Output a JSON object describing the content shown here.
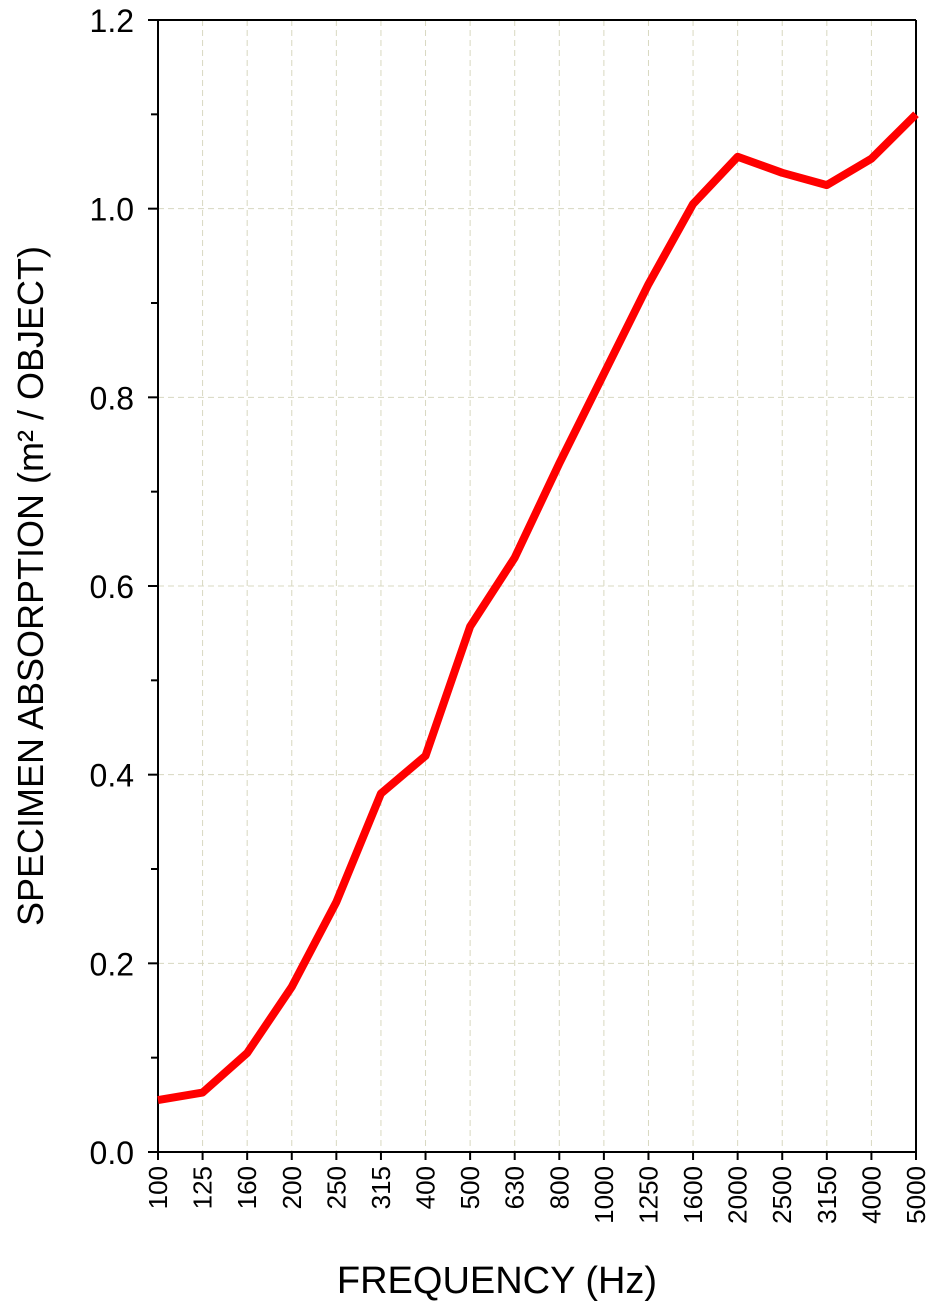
{
  "chart_data": {
    "type": "line",
    "xlabel": "FREQUENCY (Hz)",
    "ylabel": "SPECIMEN ABSORPTION (m² / OBJECT)",
    "categories": [
      "100",
      "125",
      "160",
      "200",
      "250",
      "315",
      "400",
      "500",
      "630",
      "800",
      "1000",
      "1250",
      "1600",
      "2000",
      "2500",
      "3150",
      "4000",
      "5000"
    ],
    "series": [
      {
        "color": "#ff0000",
        "values": [
          0.055,
          0.063,
          0.105,
          0.175,
          0.265,
          0.38,
          0.42,
          0.557,
          0.63,
          0.73,
          0.825,
          0.92,
          1.005,
          1.055,
          1.038,
          1.025,
          1.053,
          1.1
        ]
      }
    ],
    "ylim": [
      0,
      1.2
    ],
    "yticks": [
      "0.0",
      "0.2",
      "0.4",
      "0.6",
      "0.8",
      "1.0",
      "1.2"
    ],
    "grid": true,
    "grid_color": "#d8d8c0"
  }
}
